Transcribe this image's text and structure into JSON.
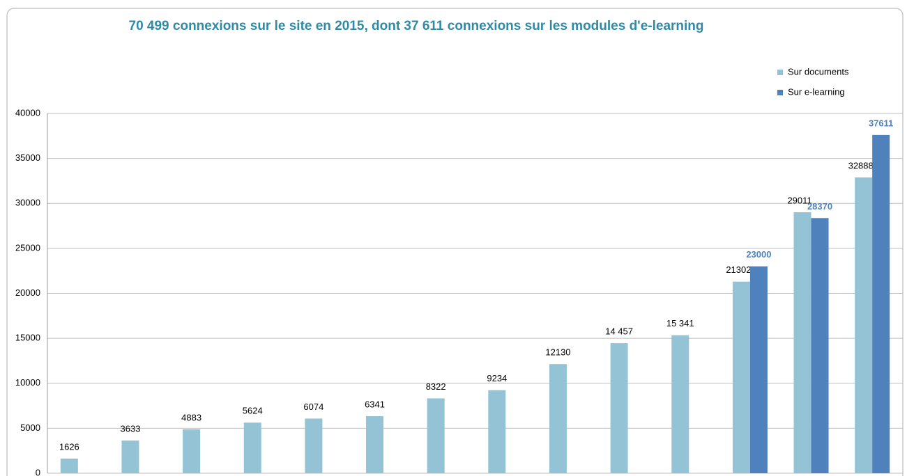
{
  "chart_data": {
    "type": "bar",
    "title": "70 499 connexions sur le site en 2015,  dont 37 611 connexions sur les modules d'e-learning",
    "categories": [
      null,
      null,
      null,
      null,
      null,
      null,
      null,
      null,
      null,
      null,
      null,
      null,
      null,
      null
    ],
    "series": [
      {
        "name": "Sur documents",
        "color": "#93c3d4",
        "values": [
          1626,
          3633,
          4883,
          5624,
          6074,
          6341,
          8322,
          9234,
          12130,
          14457,
          15341,
          21302,
          29011,
          32888
        ],
        "value_labels": [
          "1626",
          "3633",
          "4883",
          "5624",
          "6074",
          "6341",
          "8322",
          "9234",
          "12130",
          "14 457",
          "15 341",
          "21302",
          "29011",
          "32888"
        ]
      },
      {
        "name": "Sur e-learning",
        "color": "#4f81bd",
        "values": [
          null,
          null,
          null,
          null,
          null,
          null,
          null,
          null,
          null,
          null,
          null,
          23000,
          28370,
          37611
        ],
        "value_labels": [
          null,
          null,
          null,
          null,
          null,
          null,
          null,
          null,
          null,
          null,
          null,
          "23000",
          "28370",
          "37611"
        ]
      }
    ],
    "ylim": [
      0,
      40000
    ],
    "yticks": [
      0,
      5000,
      10000,
      15000,
      20000,
      25000,
      30000,
      35000,
      40000
    ],
    "grid": true,
    "legend": "top-right"
  }
}
